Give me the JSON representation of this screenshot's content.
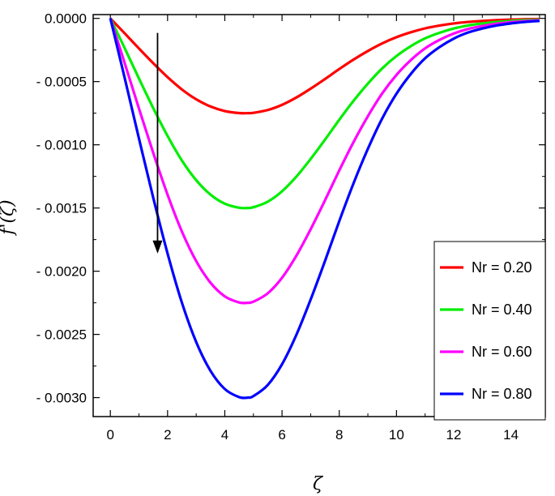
{
  "chart_data": {
    "type": "line",
    "title": "",
    "xlabel": "ζ",
    "ylabel": "f'(ζ)",
    "xlim": [
      -0.6,
      15.2
    ],
    "ylim": [
      -0.00315,
      3e-05
    ],
    "xticks": [
      0,
      2,
      4,
      6,
      8,
      10,
      12,
      14
    ],
    "xtick_labels": [
      "0",
      "2",
      "4",
      "6",
      "8",
      "10",
      "12",
      "14"
    ],
    "yticks": [
      0,
      -0.0005,
      -0.001,
      -0.0015,
      -0.002,
      -0.0025,
      -0.003
    ],
    "ytick_labels": [
      "0.0000",
      "- 0.0005",
      "- 0.0010",
      "- 0.0015",
      "- 0.0020",
      "- 0.0025",
      "- 0.0030"
    ],
    "grid": false,
    "legend": "bottom-right",
    "x": [
      0,
      0.5,
      1,
      1.5,
      2,
      2.5,
      3,
      3.5,
      4,
      4.5,
      4.8,
      5,
      5.5,
      6,
      6.5,
      7,
      7.5,
      8,
      8.5,
      9,
      9.5,
      10,
      10.5,
      11,
      11.5,
      12,
      12.5,
      13,
      13.5,
      14,
      14.5,
      15
    ],
    "series": [
      {
        "name": "Nr = 0.20",
        "color": "#ff0000",
        "values": [
          0,
          -0.000118,
          -0.000238,
          -0.000355,
          -0.000465,
          -0.000562,
          -0.00064,
          -0.000697,
          -0.000733,
          -0.000749,
          -0.00075,
          -0.000747,
          -0.000725,
          -0.000684,
          -0.000626,
          -0.000556,
          -0.00048,
          -0.000401,
          -0.000326,
          -0.000258,
          -0.000198,
          -0.000149,
          -0.00011,
          -7.9e-05,
          -5.7e-05,
          -4e-05,
          -2.8e-05,
          -2e-05,
          -1.4e-05,
          -1e-05,
          -7e-06,
          -5e-06
        ]
      },
      {
        "name": "Nr = 0.40",
        "color": "#00ee00",
        "values": [
          0,
          -0.000235,
          -0.000475,
          -0.00071,
          -0.00093,
          -0.001124,
          -0.00128,
          -0.001394,
          -0.001466,
          -0.001498,
          -0.0015,
          -0.001494,
          -0.00145,
          -0.001368,
          -0.001252,
          -0.001112,
          -0.00096,
          -0.000802,
          -0.000652,
          -0.000516,
          -0.000396,
          -0.000298,
          -0.00022,
          -0.000158,
          -0.000114,
          -8e-05,
          -5.6e-05,
          -4e-05,
          -2.8e-05,
          -2e-05,
          -1.4e-05,
          -1e-05
        ]
      },
      {
        "name": "Nr = 0.60",
        "color": "#ff00ff",
        "values": [
          0,
          -0.000353,
          -0.000713,
          -0.001065,
          -0.001395,
          -0.001686,
          -0.00192,
          -0.002091,
          -0.002199,
          -0.002247,
          -0.00225,
          -0.002241,
          -0.002175,
          -0.002052,
          -0.001878,
          -0.001668,
          -0.00144,
          -0.001203,
          -0.000978,
          -0.000774,
          -0.000594,
          -0.000447,
          -0.00033,
          -0.000237,
          -0.000171,
          -0.00012,
          -8.4e-05,
          -6e-05,
          -4.2e-05,
          -3e-05,
          -2.1e-05,
          -1.5e-05
        ]
      },
      {
        "name": "Nr = 0.80",
        "color": "#0000ff",
        "values": [
          0,
          -0.00047,
          -0.00095,
          -0.00142,
          -0.00186,
          -0.002248,
          -0.00256,
          -0.002788,
          -0.002932,
          -0.002996,
          -0.003,
          -0.002988,
          -0.0029,
          -0.002736,
          -0.002504,
          -0.002224,
          -0.00192,
          -0.001604,
          -0.001304,
          -0.001032,
          -0.000792,
          -0.000596,
          -0.00044,
          -0.000316,
          -0.000228,
          -0.00016,
          -0.000112,
          -8e-05,
          -5.6e-05,
          -4e-05,
          -2.8e-05,
          -2e-05
        ]
      }
    ],
    "annotations": [
      {
        "type": "arrow",
        "direction": "down",
        "x": 1.65,
        "y_from": -0.000115,
        "y_to": -0.00186,
        "meaning": "increasing Nr"
      }
    ]
  }
}
